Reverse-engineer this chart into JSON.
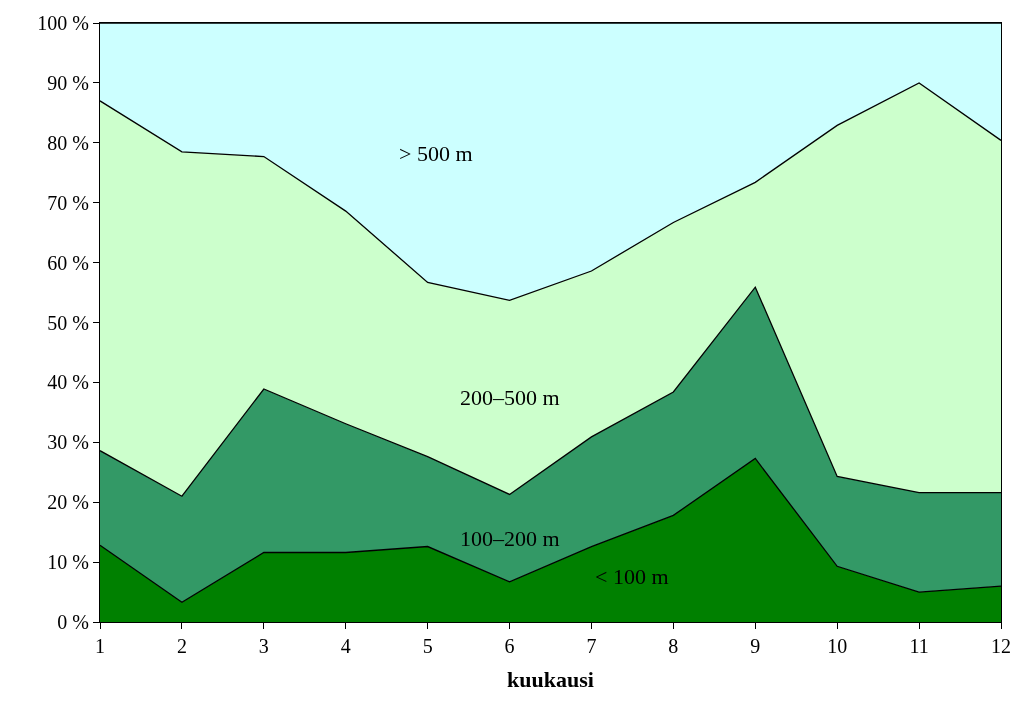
{
  "chart_data": {
    "type": "area",
    "stacked": true,
    "xlabel": "kuukausi",
    "x": [
      1,
      2,
      3,
      4,
      5,
      6,
      7,
      8,
      9,
      10,
      11,
      12
    ],
    "series": [
      {
        "name": "< 100 m",
        "color": "#008000",
        "values": [
          12.8,
          3.3,
          11.6,
          11.6,
          12.6,
          6.7,
          12.6,
          17.8,
          27.3,
          9.3,
          5.0,
          6.0
        ]
      },
      {
        "name": "100–200 m",
        "color": "#339966",
        "values": [
          15.8,
          17.7,
          27.3,
          21.5,
          15.0,
          14.6,
          18.3,
          20.6,
          28.6,
          15.0,
          16.6,
          15.6
        ]
      },
      {
        "name": "200–500 m",
        "color": "#ccffcc",
        "values": [
          58.4,
          57.5,
          38.8,
          35.5,
          29.1,
          32.4,
          27.7,
          28.3,
          17.5,
          58.6,
          68.4,
          58.8
        ]
      },
      {
        "name": "> 500 m",
        "color": "#ccffff",
        "values": [
          13.0,
          21.5,
          22.3,
          31.4,
          43.3,
          46.3,
          41.4,
          33.3,
          26.6,
          17.1,
          10.0,
          19.6
        ]
      }
    ],
    "xlim": [
      1,
      12
    ],
    "xticks": [
      1,
      2,
      3,
      4,
      5,
      6,
      7,
      8,
      9,
      10,
      11,
      12
    ],
    "ylim": [
      0,
      100
    ],
    "yticks": [
      {
        "value": 0,
        "label": "0 %"
      },
      {
        "value": 10,
        "label": "10 %"
      },
      {
        "value": 20,
        "label": "20 %"
      },
      {
        "value": 30,
        "label": "30 %"
      },
      {
        "value": 40,
        "label": "40 %"
      },
      {
        "value": 50,
        "label": "50 %"
      },
      {
        "value": 60,
        "label": "60 %"
      },
      {
        "value": 70,
        "label": "70 %"
      },
      {
        "value": 80,
        "label": "80 %"
      },
      {
        "value": 90,
        "label": "90 %"
      },
      {
        "value": 100,
        "label": "100 %"
      }
    ],
    "legend": false,
    "line_style": "solid",
    "marker": "none"
  }
}
